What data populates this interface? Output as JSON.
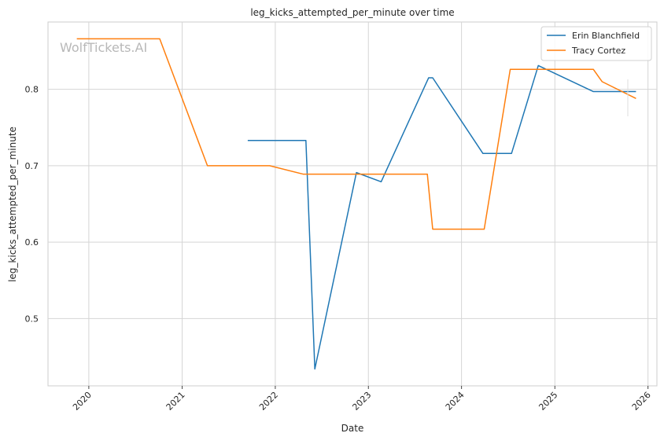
{
  "chart_data": {
    "type": "line",
    "title": "leg_kicks_attempted_per_minute over time",
    "xlabel": "Date",
    "ylabel": "leg_kicks_attempted_per_minute",
    "watermark": "WolfTickets.AI",
    "x_type": "date",
    "xlim": [
      "2019-07-25",
      "2026-02-05"
    ],
    "ylim": [
      0.412,
      0.888
    ],
    "x_ticks": [
      "2020-01-01",
      "2021-01-01",
      "2022-01-01",
      "2023-01-01",
      "2024-01-01",
      "2025-01-01",
      "2026-01-01"
    ],
    "x_tick_labels": [
      "2020",
      "2021",
      "2022",
      "2023",
      "2024",
      "2025",
      "2026"
    ],
    "y_ticks": [
      0.5,
      0.6,
      0.7,
      0.8
    ],
    "y_tick_labels": [
      "0.5",
      "0.6",
      "0.7",
      "0.8"
    ],
    "grid": true,
    "legend_position": "top-right",
    "series": [
      {
        "name": "Erin Blanchfield",
        "color": "#1f77b4",
        "points": [
          [
            "2021-09-15",
            0.733
          ],
          [
            "2022-05-01",
            0.733
          ],
          [
            "2022-06-05",
            0.434
          ],
          [
            "2022-11-15",
            0.691
          ],
          [
            "2023-02-20",
            0.679
          ],
          [
            "2023-08-25",
            0.815
          ],
          [
            "2023-09-10",
            0.815
          ],
          [
            "2024-03-25",
            0.716
          ],
          [
            "2024-07-15",
            0.716
          ],
          [
            "2024-10-28",
            0.831
          ],
          [
            "2025-06-01",
            0.797
          ],
          [
            "2025-11-15",
            0.797
          ]
        ]
      },
      {
        "name": "Tracy Cortez",
        "color": "#ff7f0e",
        "points": [
          [
            "2019-11-15",
            0.866
          ],
          [
            "2020-10-05",
            0.866
          ],
          [
            "2021-04-10",
            0.7
          ],
          [
            "2021-12-10",
            0.7
          ],
          [
            "2022-04-20",
            0.689
          ],
          [
            "2023-08-20",
            0.689
          ],
          [
            "2023-09-10",
            0.617
          ],
          [
            "2024-03-30",
            0.617
          ],
          [
            "2024-07-10",
            0.826
          ],
          [
            "2025-06-01",
            0.826
          ],
          [
            "2025-07-05",
            0.81
          ],
          [
            "2025-11-15",
            0.788
          ]
        ]
      }
    ]
  }
}
